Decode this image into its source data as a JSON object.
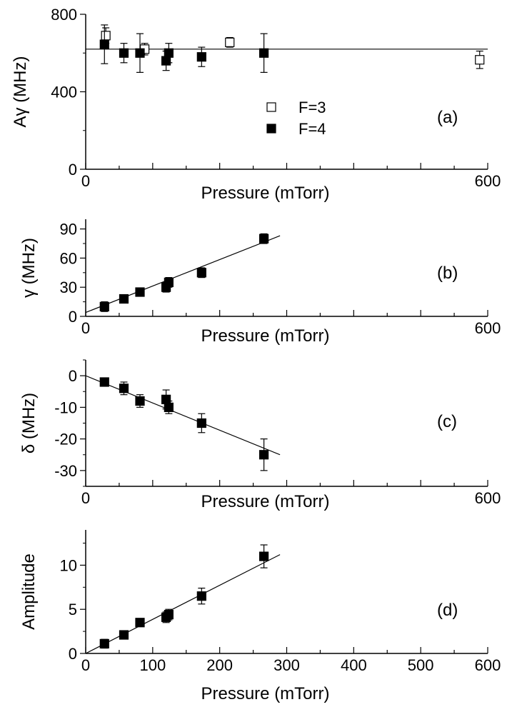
{
  "chart_data": [
    {
      "type": "scatter",
      "panel_label": "(a)",
      "xlabel": "Pressure (mTorr)",
      "ylabel": "Aγ (MHz)",
      "xlim": [
        0,
        600
      ],
      "ylim": [
        0,
        800
      ],
      "x_tick_labels": [
        "0",
        "600"
      ],
      "y_ticks": [
        0,
        400,
        800
      ],
      "grid": false,
      "legend": {
        "placement": "center-right",
        "entries": [
          "F=3",
          "F=4"
        ]
      },
      "series": [
        {
          "name": "F=3",
          "marker": "open-square",
          "points": [
            {
              "x": 30,
              "y": 690,
              "err": 40
            },
            {
              "x": 88,
              "y": 620,
              "err": 30
            },
            {
              "x": 215,
              "y": 655,
              "err": 25
            },
            {
              "x": 588,
              "y": 565,
              "err": 45
            }
          ]
        },
        {
          "name": "F=4",
          "marker": "filled-square",
          "points": [
            {
              "x": 28,
              "y": 645,
              "err": 100
            },
            {
              "x": 57,
              "y": 600,
              "err": 50
            },
            {
              "x": 81,
              "y": 600,
              "err": 100
            },
            {
              "x": 120,
              "y": 560,
              "err": 50
            },
            {
              "x": 124,
              "y": 600,
              "err": 50
            },
            {
              "x": 173,
              "y": 580,
              "err": 50
            },
            {
              "x": 266,
              "y": 600,
              "err": 100
            }
          ]
        }
      ],
      "fit_line": {
        "x": [
          0,
          600
        ],
        "y": [
          620,
          620
        ]
      }
    },
    {
      "type": "scatter",
      "panel_label": "(b)",
      "xlabel": "Pressure (mTorr)",
      "ylabel": "γ (MHz)",
      "xlim": [
        0,
        600
      ],
      "ylim": [
        0,
        100
      ],
      "x_tick_labels": [
        "0",
        "600"
      ],
      "y_ticks": [
        0,
        30,
        60,
        90
      ],
      "grid": false,
      "series": [
        {
          "marker": "filled-square",
          "points": [
            {
              "x": 28,
              "y": 10,
              "err": 5
            },
            {
              "x": 57,
              "y": 18,
              "err": 2
            },
            {
              "x": 81,
              "y": 25,
              "err": 2
            },
            {
              "x": 120,
              "y": 30,
              "err": 5
            },
            {
              "x": 124,
              "y": 35,
              "err": 5
            },
            {
              "x": 173,
              "y": 45,
              "err": 5
            },
            {
              "x": 266,
              "y": 80,
              "err": 5
            }
          ]
        }
      ],
      "fit_line": {
        "x": [
          0,
          290
        ],
        "y": [
          4,
          83
        ]
      }
    },
    {
      "type": "scatter",
      "panel_label": "(c)",
      "xlabel": "Pressure (mTorr)",
      "ylabel": "δ (MHz)",
      "xlim": [
        0,
        600
      ],
      "ylim": [
        -35,
        5
      ],
      "x_tick_labels": [
        "0",
        "600"
      ],
      "y_ticks": [
        0,
        -10,
        -20,
        -30
      ],
      "grid": false,
      "series": [
        {
          "marker": "filled-square",
          "points": [
            {
              "x": 28,
              "y": -2,
              "err": 1
            },
            {
              "x": 57,
              "y": -4,
              "err": 2
            },
            {
              "x": 81,
              "y": -8,
              "err": 2
            },
            {
              "x": 120,
              "y": -7.5,
              "err": 3
            },
            {
              "x": 124,
              "y": -10,
              "err": 2
            },
            {
              "x": 173,
              "y": -15,
              "err": 3
            },
            {
              "x": 266,
              "y": -25,
              "err": 5
            }
          ]
        }
      ],
      "fit_line": {
        "x": [
          0,
          290
        ],
        "y": [
          0,
          -25
        ]
      }
    },
    {
      "type": "scatter",
      "panel_label": "(d)",
      "xlabel": "Pressure (mTorr)",
      "ylabel": "Amplitude",
      "xlim": [
        0,
        600
      ],
      "ylim": [
        0,
        14
      ],
      "x_tick_labels": [
        "0",
        "100",
        "200",
        "300",
        "400",
        "500",
        "600"
      ],
      "y_ticks": [
        0,
        5,
        10
      ],
      "grid": false,
      "series": [
        {
          "marker": "filled-square",
          "points": [
            {
              "x": 28,
              "y": 1.1,
              "err": 0.5
            },
            {
              "x": 57,
              "y": 2.1,
              "err": 0.3
            },
            {
              "x": 81,
              "y": 3.5,
              "err": 0.4
            },
            {
              "x": 120,
              "y": 4.1,
              "err": 0.6
            },
            {
              "x": 124,
              "y": 4.4,
              "err": 0.6
            },
            {
              "x": 173,
              "y": 6.5,
              "err": 0.9
            },
            {
              "x": 266,
              "y": 11,
              "err": 1.3
            }
          ]
        }
      ],
      "fit_line": {
        "x": [
          0,
          290
        ],
        "y": [
          0,
          11.2
        ]
      }
    }
  ]
}
